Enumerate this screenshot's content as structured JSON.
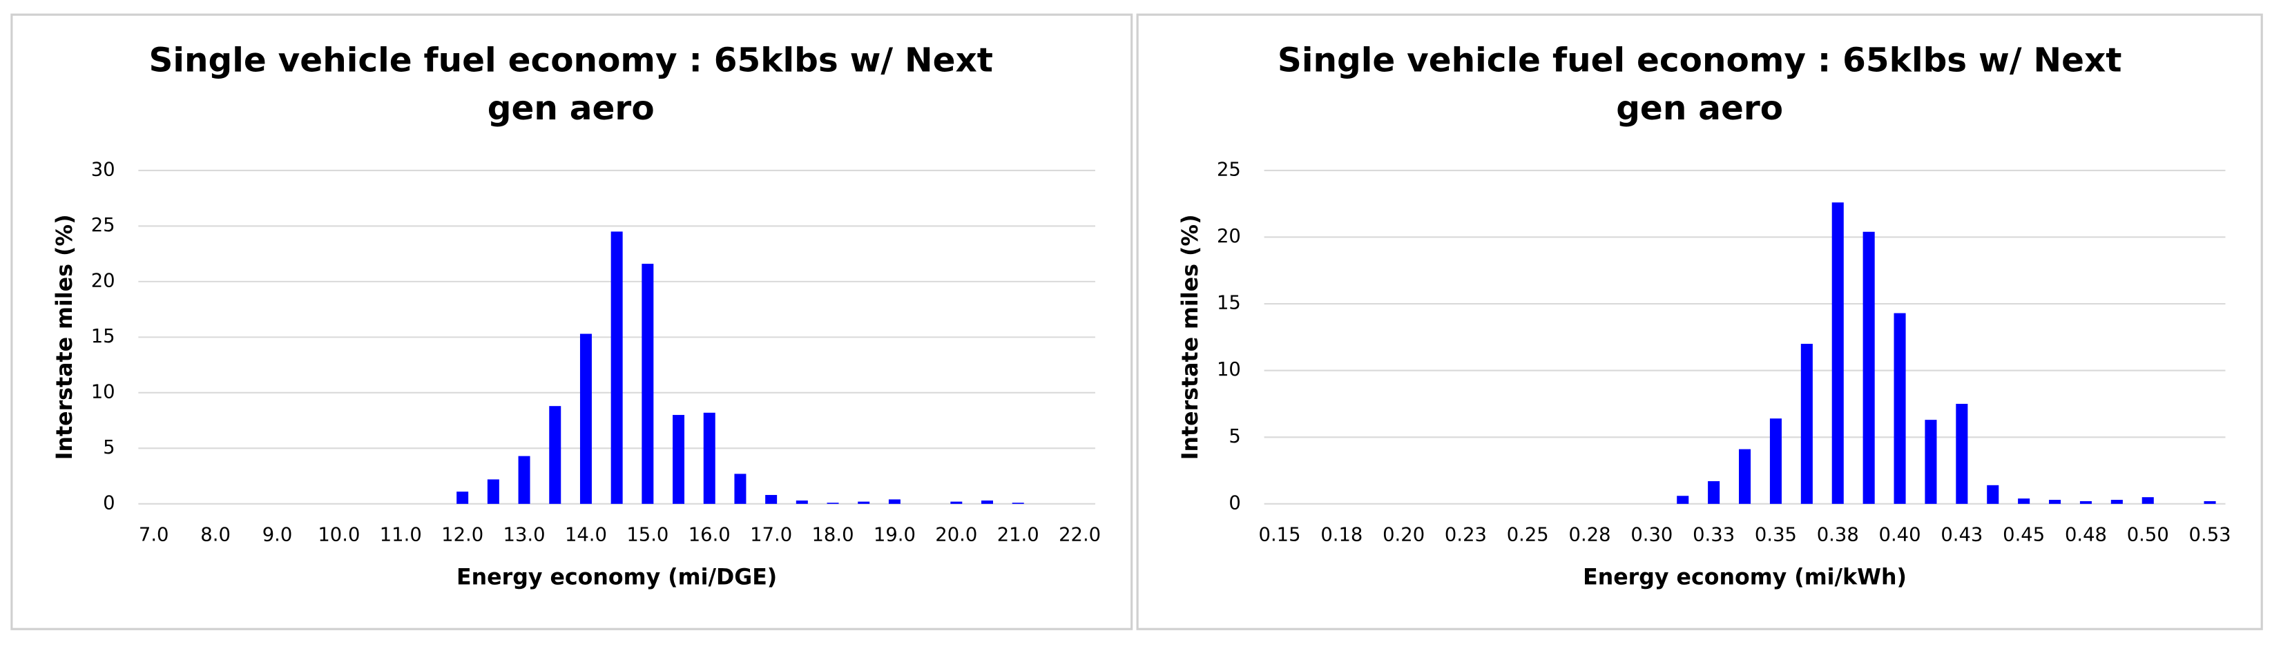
{
  "chart_data": [
    {
      "type": "bar",
      "title": "Single vehicle fuel economy : 65klbs w/ Next gen aero",
      "x_label": "Energy economy (mi/DGE)",
      "y_label": "Interstate miles (%)",
      "categories": [
        "7.0",
        null,
        "8.0",
        null,
        "9.0",
        null,
        "10.0",
        null,
        "11.0",
        null,
        "12.0",
        null,
        "13.0",
        null,
        "14.0",
        null,
        "15.0",
        null,
        "16.0",
        null,
        "17.0",
        null,
        "18.0",
        null,
        "19.0",
        null,
        "20.0",
        null,
        "21.0",
        null,
        "22.0"
      ],
      "values": [
        0,
        0,
        0,
        0,
        0,
        0,
        0,
        0,
        0,
        0,
        1.1,
        2.2,
        4.3,
        8.8,
        15.3,
        24.5,
        21.6,
        8.0,
        8.2,
        2.7,
        0.8,
        0.3,
        0.1,
        0.2,
        0.4,
        0,
        0.2,
        0.3,
        0.1,
        0,
        0
      ],
      "color": "#0000ff",
      "ylim": [
        0,
        30
      ],
      "yticks": [
        0,
        5,
        10,
        15,
        20,
        25,
        30
      ],
      "grid": true
    },
    {
      "type": "bar",
      "title": "Single vehicle fuel economy : 65klbs w/ Next gen aero",
      "x_label": "Energy economy (mi/kWh)",
      "y_label": "Interstate miles (%)",
      "categories": [
        "0.15",
        null,
        "0.18",
        null,
        "0.20",
        null,
        "0.23",
        null,
        "0.25",
        null,
        "0.28",
        null,
        "0.30",
        null,
        "0.33",
        null,
        "0.35",
        null,
        "0.38",
        null,
        "0.40",
        null,
        "0.43",
        null,
        "0.45",
        null,
        "0.48",
        null,
        "0.50",
        null,
        "0.53"
      ],
      "values": [
        0,
        0,
        0,
        0,
        0,
        0,
        0,
        0,
        0,
        0,
        0,
        0,
        0,
        0.6,
        1.7,
        4.1,
        6.4,
        12.0,
        22.6,
        20.4,
        14.3,
        6.3,
        7.5,
        1.4,
        0.4,
        0.3,
        0.2,
        0.3,
        0.5,
        0,
        0.2
      ],
      "color": "#0000ff",
      "ylim": [
        0,
        25
      ],
      "yticks": [
        0,
        5,
        10,
        15,
        20,
        25
      ],
      "grid": true
    }
  ]
}
